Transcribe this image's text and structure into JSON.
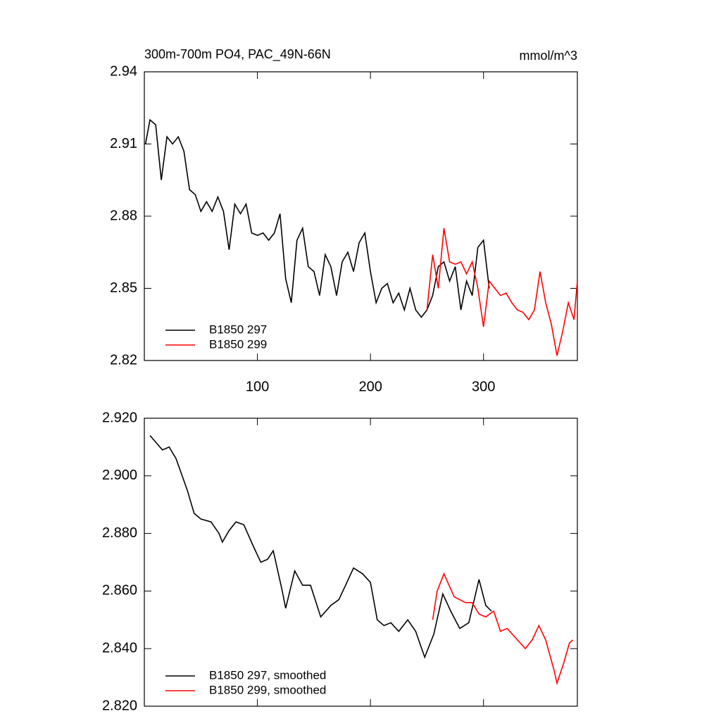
{
  "chart_data": [
    {
      "type": "line",
      "title": "300m-700m PO4, PAC_49N-66N",
      "right_title": "mmol/m^3",
      "xlim": [
        0,
        383
      ],
      "xticks": [
        100,
        200,
        300
      ],
      "ylim": [
        2.82,
        2.94
      ],
      "yticks": [
        2.82,
        2.85,
        2.88,
        2.91,
        2.94
      ],
      "legend": "lower left",
      "series": [
        {
          "name": "B1850 297",
          "color": "#000000",
          "x": [
            1,
            5,
            10,
            15,
            20,
            25,
            30,
            35,
            40,
            45,
            50,
            55,
            60,
            65,
            70,
            75,
            80,
            85,
            90,
            95,
            100,
            105,
            110,
            115,
            120,
            125,
            130,
            135,
            140,
            145,
            150,
            155,
            160,
            165,
            170,
            175,
            180,
            185,
            190,
            195,
            200,
            205,
            210,
            215,
            220,
            225,
            230,
            235,
            240,
            245,
            250,
            255,
            260,
            265,
            270,
            275,
            280,
            285,
            290,
            295,
            300,
            305
          ],
          "values": [
            2.91,
            2.92,
            2.918,
            2.895,
            2.913,
            2.91,
            2.913,
            2.907,
            2.891,
            2.889,
            2.882,
            2.886,
            2.882,
            2.888,
            2.882,
            2.866,
            2.885,
            2.881,
            2.885,
            2.873,
            2.872,
            2.873,
            2.87,
            2.873,
            2.881,
            2.854,
            2.844,
            2.87,
            2.875,
            2.859,
            2.857,
            2.847,
            2.864,
            2.859,
            2.847,
            2.861,
            2.865,
            2.857,
            2.869,
            2.873,
            2.857,
            2.844,
            2.85,
            2.852,
            2.844,
            2.848,
            2.841,
            2.85,
            2.841,
            2.838,
            2.841,
            2.847,
            2.859,
            2.861,
            2.853,
            2.859,
            2.841,
            2.853,
            2.847,
            2.867,
            2.87,
            2.85
          ]
        },
        {
          "name": "B1850 299",
          "color": "#ff0000",
          "x": [
            250,
            255,
            260,
            265,
            270,
            275,
            280,
            285,
            290,
            295,
            300,
            305,
            310,
            315,
            320,
            325,
            330,
            335,
            340,
            345,
            350,
            355,
            360,
            365,
            370,
            375,
            380,
            383
          ],
          "values": [
            2.841,
            2.864,
            2.85,
            2.875,
            2.861,
            2.86,
            2.861,
            2.856,
            2.861,
            2.85,
            2.834,
            2.853,
            2.85,
            2.847,
            2.848,
            2.844,
            2.841,
            2.84,
            2.837,
            2.841,
            2.857,
            2.844,
            2.835,
            2.822,
            2.832,
            2.844,
            2.837,
            2.853
          ]
        }
      ]
    },
    {
      "type": "line",
      "xlim": [
        0,
        383
      ],
      "xticks": [
        100,
        200,
        300
      ],
      "ylim": [
        2.82,
        2.92
      ],
      "yticks": [
        {
          "value": 2.82,
          "label": "2.820"
        },
        {
          "value": 2.84,
          "label": "2.840"
        },
        {
          "value": 2.86,
          "label": "2.860"
        },
        {
          "value": 2.88,
          "label": "2.880"
        },
        {
          "value": 2.9,
          "label": "2.900"
        },
        {
          "value": 2.92,
          "label": "2.920"
        }
      ],
      "legend": "lower left",
      "series": [
        {
          "name": "B1850 297, smoothed",
          "color": "#000000",
          "x": [
            5,
            16,
            22,
            28,
            38,
            44,
            50,
            59,
            66,
            69,
            75,
            81,
            88,
            97,
            103,
            109,
            114,
            122,
            125,
            133,
            140,
            147,
            156,
            165,
            172,
            178,
            185,
            193,
            200,
            206,
            212,
            218,
            225,
            233,
            240,
            248,
            256,
            264,
            271,
            279,
            287,
            296,
            302,
            307
          ],
          "values": [
            2.914,
            2.909,
            2.91,
            2.906,
            2.895,
            2.887,
            2.885,
            2.884,
            2.88,
            2.877,
            2.881,
            2.884,
            2.883,
            2.875,
            2.87,
            2.871,
            2.874,
            2.86,
            2.854,
            2.867,
            2.862,
            2.862,
            2.851,
            2.855,
            2.857,
            2.862,
            2.868,
            2.866,
            2.863,
            2.85,
            2.848,
            2.849,
            2.846,
            2.85,
            2.846,
            2.837,
            2.845,
            2.859,
            2.853,
            2.847,
            2.849,
            2.864,
            2.855,
            2.853
          ]
        },
        {
          "name": "B1850 299, smoothed",
          "color": "#ff0000",
          "x": [
            255,
            259,
            265,
            274,
            284,
            290,
            296,
            302,
            309,
            315,
            321,
            330,
            337,
            343,
            349,
            355,
            362,
            365,
            371,
            376,
            379
          ],
          "values": [
            2.85,
            2.86,
            2.866,
            2.858,
            2.856,
            2.856,
            2.852,
            2.851,
            2.853,
            2.846,
            2.847,
            2.843,
            2.84,
            2.843,
            2.848,
            2.843,
            2.833,
            2.828,
            2.835,
            2.842,
            2.843
          ]
        }
      ]
    }
  ]
}
